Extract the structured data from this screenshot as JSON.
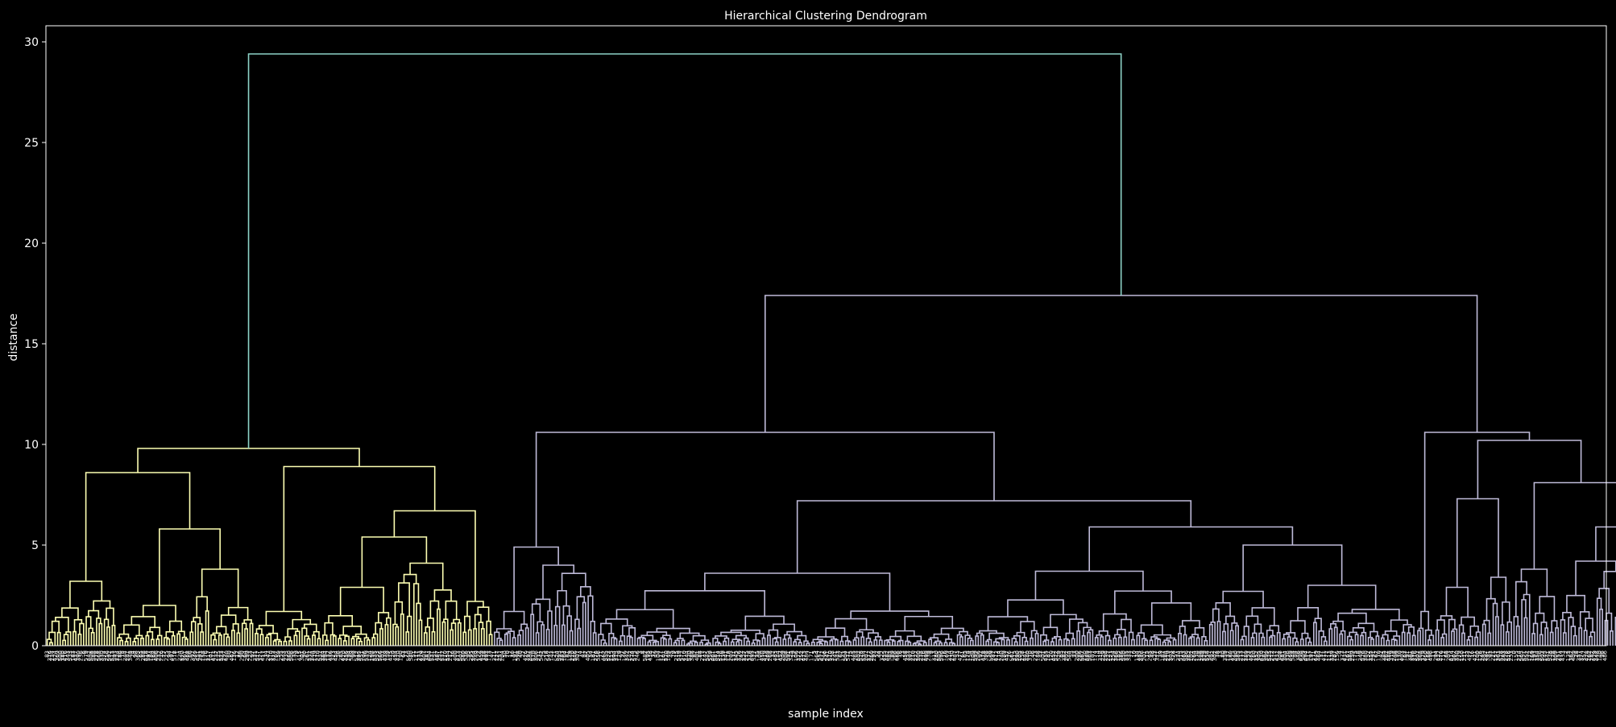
{
  "chart_data": {
    "type": "dendrogram",
    "title": "Hierarchical Clustering Dendrogram",
    "xlabel": "sample index",
    "ylabel": "distance",
    "ylim": [
      0,
      30.8
    ],
    "yticks": [
      0,
      5,
      10,
      15,
      20,
      25,
      30
    ],
    "grid": false,
    "leaf_count": 600,
    "colors": {
      "background": "#000000",
      "axes": "#ffffff",
      "root_link": "#8dd3c7",
      "cluster_1": "#feffb3",
      "cluster_2": "#bfbbd9"
    },
    "merges": [
      {
        "cluster": "root",
        "distance": 29.4,
        "joins": [
          "cluster_1",
          "cluster_2"
        ]
      },
      {
        "cluster": "cluster_1",
        "distance": 9.8
      },
      {
        "cluster": "cluster_2",
        "distance": 17.4
      },
      {
        "cluster": "cluster_2",
        "distance": 10.6
      },
      {
        "cluster": "cluster_2",
        "distance": 10.6
      },
      {
        "cluster": "cluster_2",
        "distance": 10.2
      },
      {
        "cluster": "cluster_1",
        "distance": 8.9
      },
      {
        "cluster": "cluster_1",
        "distance": 8.6
      },
      {
        "cluster": "cluster_2",
        "distance": 8.1
      },
      {
        "cluster": "cluster_2",
        "distance": 7.3
      },
      {
        "cluster": "cluster_2",
        "distance": 7.2
      },
      {
        "cluster": "cluster_1",
        "distance": 6.7
      },
      {
        "cluster": "cluster_2",
        "distance": 5.9
      },
      {
        "cluster": "cluster_2",
        "distance": 5.9
      },
      {
        "cluster": "cluster_1",
        "distance": 5.8
      },
      {
        "cluster": "cluster_1",
        "distance": 5.4
      },
      {
        "cluster": "cluster_2",
        "distance": 5.0
      },
      {
        "cluster": "cluster_2",
        "distance": 4.9
      }
    ]
  }
}
